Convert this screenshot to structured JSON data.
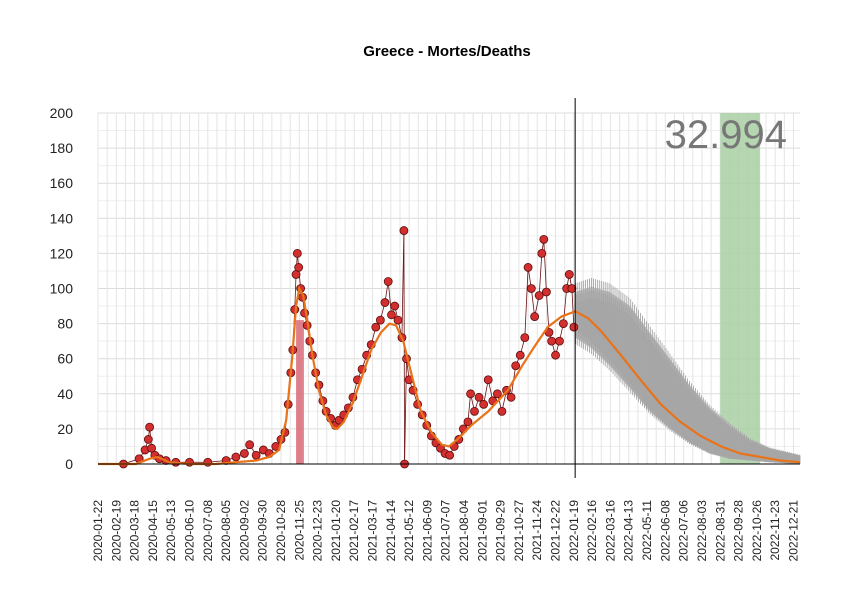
{
  "chart_data": {
    "type": "scatter",
    "title": "Greece - Mortes/Deaths",
    "annotation_total": "32.994",
    "xlabel": "",
    "ylabel": "",
    "ylim": [
      0,
      200
    ],
    "y_ticks": [
      0,
      20,
      40,
      60,
      80,
      100,
      120,
      140,
      160,
      180,
      200
    ],
    "x_range": [
      "2020-01-22",
      "2022-12-31"
    ],
    "x_tick_labels": [
      "2020-01-22",
      "2020-02-19",
      "2020-03-18",
      "2020-04-15",
      "2020-05-13",
      "2020-06-10",
      "2020-07-08",
      "2020-08-05",
      "2020-09-02",
      "2020-09-30",
      "2020-10-28",
      "2020-11-25",
      "2020-12-23",
      "2021-01-20",
      "2021-02-17",
      "2021-03-17",
      "2021-04-14",
      "2021-05-12",
      "2021-06-09",
      "2021-07-07",
      "2021-08-04",
      "2021-09-01",
      "2021-09-29",
      "2021-10-27",
      "2021-11-24",
      "2021-12-22",
      "2022-01-19",
      "2022-02-16",
      "2022-03-16",
      "2022-04-13",
      "2022-05-11",
      "2022-06-08",
      "2022-07-06",
      "2022-08-03",
      "2022-08-31",
      "2022-09-28",
      "2022-10-26",
      "2022-11-23",
      "2022-12-21"
    ],
    "grid": true,
    "forecast_start": "2022-01-21",
    "highlight_band": {
      "start": "2022-08-31",
      "end": "2022-10-31"
    },
    "peak_bar": {
      "start": "2020-11-20",
      "end": "2020-12-02",
      "value": 82
    },
    "series": [
      {
        "role": "daily_observed",
        "type": "scatter",
        "points": [
          [
            "2020-03-01",
            0
          ],
          [
            "2020-03-25",
            3
          ],
          [
            "2020-04-03",
            8
          ],
          [
            "2020-04-08",
            14
          ],
          [
            "2020-04-10",
            21
          ],
          [
            "2020-04-13",
            9
          ],
          [
            "2020-04-18",
            5
          ],
          [
            "2020-04-25",
            3
          ],
          [
            "2020-05-05",
            2
          ],
          [
            "2020-05-20",
            1
          ],
          [
            "2020-06-10",
            1
          ],
          [
            "2020-07-08",
            1
          ],
          [
            "2020-08-05",
            2
          ],
          [
            "2020-08-20",
            4
          ],
          [
            "2020-09-02",
            6
          ],
          [
            "2020-09-10",
            11
          ],
          [
            "2020-09-20",
            5
          ],
          [
            "2020-10-01",
            8
          ],
          [
            "2020-10-10",
            6
          ],
          [
            "2020-10-20",
            10
          ],
          [
            "2020-10-28",
            14
          ],
          [
            "2020-11-03",
            18
          ],
          [
            "2020-11-08",
            34
          ],
          [
            "2020-11-12",
            52
          ],
          [
            "2020-11-15",
            65
          ],
          [
            "2020-11-18",
            88
          ],
          [
            "2020-11-20",
            108
          ],
          [
            "2020-11-22",
            120
          ],
          [
            "2020-11-24",
            112
          ],
          [
            "2020-11-27",
            100
          ],
          [
            "2020-11-30",
            95
          ],
          [
            "2020-12-03",
            86
          ],
          [
            "2020-12-07",
            79
          ],
          [
            "2020-12-11",
            70
          ],
          [
            "2020-12-15",
            62
          ],
          [
            "2020-12-20",
            52
          ],
          [
            "2020-12-25",
            45
          ],
          [
            "2020-12-31",
            36
          ],
          [
            "2021-01-05",
            30
          ],
          [
            "2021-01-12",
            26
          ],
          [
            "2021-01-19",
            22
          ],
          [
            "2021-01-25",
            25
          ],
          [
            "2021-02-01",
            28
          ],
          [
            "2021-02-08",
            32
          ],
          [
            "2021-02-15",
            38
          ],
          [
            "2021-02-22",
            48
          ],
          [
            "2021-03-01",
            54
          ],
          [
            "2021-03-08",
            62
          ],
          [
            "2021-03-15",
            68
          ],
          [
            "2021-03-22",
            78
          ],
          [
            "2021-03-29",
            82
          ],
          [
            "2021-04-05",
            92
          ],
          [
            "2021-04-10",
            104
          ],
          [
            "2021-04-15",
            85
          ],
          [
            "2021-04-20",
            90
          ],
          [
            "2021-04-25",
            82
          ],
          [
            "2021-05-01",
            72
          ],
          [
            "2021-05-04",
            133
          ],
          [
            "2021-05-05",
            0
          ],
          [
            "2021-05-08",
            60
          ],
          [
            "2021-05-12",
            48
          ],
          [
            "2021-05-18",
            42
          ],
          [
            "2021-05-25",
            34
          ],
          [
            "2021-06-01",
            28
          ],
          [
            "2021-06-08",
            22
          ],
          [
            "2021-06-15",
            16
          ],
          [
            "2021-06-22",
            12
          ],
          [
            "2021-06-29",
            9
          ],
          [
            "2021-07-06",
            6
          ],
          [
            "2021-07-13",
            5
          ],
          [
            "2021-07-20",
            10
          ],
          [
            "2021-07-27",
            14
          ],
          [
            "2021-08-03",
            20
          ],
          [
            "2021-08-10",
            24
          ],
          [
            "2021-08-14",
            40
          ],
          [
            "2021-08-20",
            30
          ],
          [
            "2021-08-27",
            38
          ],
          [
            "2021-09-03",
            34
          ],
          [
            "2021-09-10",
            48
          ],
          [
            "2021-09-17",
            36
          ],
          [
            "2021-09-24",
            40
          ],
          [
            "2021-10-01",
            30
          ],
          [
            "2021-10-08",
            42
          ],
          [
            "2021-10-15",
            38
          ],
          [
            "2021-10-22",
            56
          ],
          [
            "2021-10-29",
            62
          ],
          [
            "2021-11-05",
            72
          ],
          [
            "2021-11-10",
            112
          ],
          [
            "2021-11-15",
            100
          ],
          [
            "2021-11-20",
            84
          ],
          [
            "2021-11-27",
            96
          ],
          [
            "2021-12-01",
            120
          ],
          [
            "2021-12-04",
            128
          ],
          [
            "2021-12-08",
            98
          ],
          [
            "2021-12-12",
            75
          ],
          [
            "2021-12-16",
            70
          ],
          [
            "2021-12-22",
            62
          ],
          [
            "2021-12-28",
            70
          ],
          [
            "2022-01-03",
            80
          ],
          [
            "2022-01-08",
            100
          ],
          [
            "2022-01-12",
            108
          ],
          [
            "2022-01-16",
            100
          ],
          [
            "2022-01-19",
            78
          ]
        ]
      },
      {
        "role": "smoothed_trend",
        "type": "line",
        "points": [
          [
            "2020-01-22",
            0
          ],
          [
            "2020-03-20",
            0
          ],
          [
            "2020-04-10",
            3
          ],
          [
            "2020-04-22",
            4
          ],
          [
            "2020-05-10",
            1
          ],
          [
            "2020-06-10",
            0
          ],
          [
            "2020-07-20",
            0
          ],
          [
            "2020-08-20",
            1
          ],
          [
            "2020-09-20",
            2
          ],
          [
            "2020-10-10",
            4
          ],
          [
            "2020-10-25",
            8
          ],
          [
            "2020-11-05",
            25
          ],
          [
            "2020-11-14",
            60
          ],
          [
            "2020-11-20",
            90
          ],
          [
            "2020-11-25",
            100
          ],
          [
            "2020-12-01",
            96
          ],
          [
            "2020-12-08",
            80
          ],
          [
            "2020-12-15",
            62
          ],
          [
            "2020-12-25",
            42
          ],
          [
            "2021-01-05",
            28
          ],
          [
            "2021-01-15",
            21
          ],
          [
            "2021-01-22",
            20
          ],
          [
            "2021-02-01",
            24
          ],
          [
            "2021-02-15",
            35
          ],
          [
            "2021-03-01",
            50
          ],
          [
            "2021-03-15",
            65
          ],
          [
            "2021-03-30",
            75
          ],
          [
            "2021-04-12",
            80
          ],
          [
            "2021-04-22",
            79
          ],
          [
            "2021-05-03",
            70
          ],
          [
            "2021-05-15",
            52
          ],
          [
            "2021-05-30",
            30
          ],
          [
            "2021-06-15",
            18
          ],
          [
            "2021-07-01",
            11
          ],
          [
            "2021-07-12",
            10
          ],
          [
            "2021-07-25",
            14
          ],
          [
            "2021-08-15",
            22
          ],
          [
            "2021-09-10",
            30
          ],
          [
            "2021-10-10",
            42
          ],
          [
            "2021-11-01",
            56
          ],
          [
            "2021-11-20",
            67
          ],
          [
            "2021-12-10",
            78
          ],
          [
            "2021-12-31",
            84
          ],
          [
            "2022-01-21",
            87
          ],
          [
            "2022-02-10",
            83
          ],
          [
            "2022-03-01",
            76
          ],
          [
            "2022-04-01",
            62
          ],
          [
            "2022-05-01",
            48
          ],
          [
            "2022-06-01",
            34
          ],
          [
            "2022-07-01",
            24
          ],
          [
            "2022-08-01",
            16
          ],
          [
            "2022-09-01",
            10
          ],
          [
            "2022-10-01",
            6
          ],
          [
            "2022-11-01",
            4
          ],
          [
            "2022-12-01",
            2
          ],
          [
            "2022-12-31",
            1
          ]
        ]
      },
      {
        "role": "forecast_interval",
        "type": "area",
        "points": [
          [
            "2022-01-21",
            72,
            98
          ],
          [
            "2022-02-15",
            66,
            101
          ],
          [
            "2022-03-15",
            56,
            98
          ],
          [
            "2022-04-15",
            43,
            90
          ],
          [
            "2022-05-15",
            30,
            75
          ],
          [
            "2022-06-15",
            20,
            60
          ],
          [
            "2022-07-15",
            12,
            45
          ],
          [
            "2022-08-15",
            6,
            32
          ],
          [
            "2022-09-15",
            3,
            22
          ],
          [
            "2022-10-15",
            2,
            14
          ],
          [
            "2022-11-15",
            1,
            9
          ],
          [
            "2022-12-31",
            0,
            5
          ]
        ]
      }
    ]
  },
  "colors": {
    "point_fill": "#d32f2f",
    "point_stroke": "#5a0d0d",
    "trend_line": "#e8731a",
    "forecast_band": "#b3b3b3",
    "highlight_band": "#a9cfa4",
    "peak_bar": "#d96b78",
    "total_text": "#777777"
  }
}
